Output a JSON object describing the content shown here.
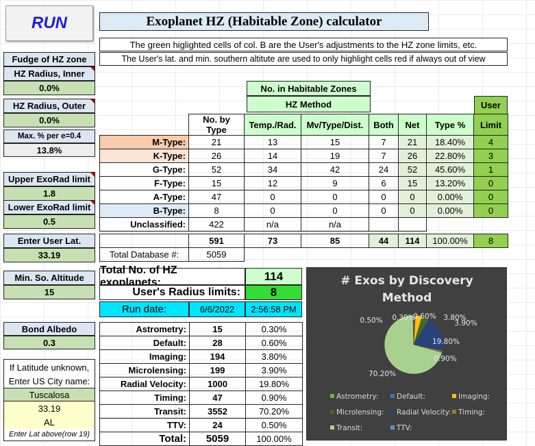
{
  "run_button": "RUN",
  "title": "Exoplanet HZ (Habitable Zone) calculator",
  "subtitle1": "The green higlighted cells of col. B are the User's adjustments to the HZ zone limits, etc.",
  "subtitle2": "The User's lat. and min. southern altitute are used to only highlight cells red if always out of view",
  "left": {
    "fudge_label": "Fudge of HZ zone",
    "inner_label": "HZ Radius, Inner",
    "inner_value": "0.0%",
    "outer_label": "HZ Radius, Outer",
    "outer_value": "0.0%",
    "maxpct_label": "Max. % per e=0.4",
    "maxpct_value": "13.8%",
    "upper_label": "Upper ExoRad limit",
    "upper_value": "1.8",
    "lower_label": "Lower ExoRad limit",
    "lower_value": "0.5",
    "lat_label": "Enter User Lat.",
    "lat_value": "33.19",
    "minalt_label": "Min. So. Altitude",
    "minalt_value": "15",
    "albedo_label": "Bond Albedo",
    "albedo_value": "0.3",
    "unknown1": "If Latitude unknown,",
    "unknown2": "Enter US City name:",
    "city": "Tuscalosa",
    "city_lat": "33.19",
    "state": "AL",
    "note": "Enter Lat above(row 19)"
  },
  "hz_table": {
    "header_top": "No. in Habitable Zones",
    "header_method": "HZ Method",
    "user_label": "User",
    "limit_label": "Limit",
    "columns": [
      "No. by Type",
      "Temp./Rad.",
      "Mv/Type/Dist.",
      "Both",
      "Net",
      "Type %"
    ],
    "rows": [
      {
        "type": "M-Type:",
        "count": "21",
        "temp": "13",
        "mv": "15",
        "both": "7",
        "net": "21",
        "pct": "18.40%",
        "limit": "4"
      },
      {
        "type": "K-Type:",
        "count": "26",
        "temp": "14",
        "mv": "19",
        "both": "7",
        "net": "26",
        "pct": "22.80%",
        "limit": "3"
      },
      {
        "type": "G-Type:",
        "count": "52",
        "temp": "34",
        "mv": "42",
        "both": "24",
        "net": "52",
        "pct": "45.60%",
        "limit": "1"
      },
      {
        "type": "F-Type:",
        "count": "15",
        "temp": "12",
        "mv": "9",
        "both": "6",
        "net": "15",
        "pct": "13.20%",
        "limit": "0"
      },
      {
        "type": "A-Type:",
        "count": "47",
        "temp": "0",
        "mv": "0",
        "both": "0",
        "net": "0",
        "pct": "0.00%",
        "limit": "0"
      },
      {
        "type": "B-Type:",
        "count": "8",
        "temp": "0",
        "mv": "0",
        "both": "0",
        "net": "0",
        "pct": "0.00%",
        "limit": "0"
      }
    ],
    "unclassified_label": "Unclassified:",
    "unclassified_count": "422",
    "unclassified_temp": "n/a",
    "unclassified_mv": "n/a",
    "totals": {
      "count": "591",
      "temp": "73",
      "mv": "85",
      "both": "44",
      "net": "114",
      "pct": "100.00%",
      "limit": "8"
    }
  },
  "database": {
    "label": "Total Database #:",
    "value": "5059"
  },
  "summary": {
    "total_label": "Total No. of HZ exoplanets:",
    "total_value": "114",
    "user_label": "User's Radius limits:",
    "user_value": "8",
    "run_label": "Run date:",
    "run_date": "6/6/2022",
    "run_time": "2:56:58 PM"
  },
  "methods": {
    "rows": [
      {
        "name": "Astrometry:",
        "count": "15",
        "pct": "0.30%"
      },
      {
        "name": "Default:",
        "count": "28",
        "pct": "0.60%"
      },
      {
        "name": "Imaging:",
        "count": "194",
        "pct": "3.80%"
      },
      {
        "name": "Microlensing:",
        "count": "199",
        "pct": "3.90%"
      },
      {
        "name": "Radial Velocity:",
        "count": "1000",
        "pct": "19.80%"
      },
      {
        "name": "Timing:",
        "count": "47",
        "pct": "0.90%"
      },
      {
        "name": "Transit:",
        "count": "3552",
        "pct": "70.20%"
      },
      {
        "name": "TTV:",
        "count": "24",
        "pct": "0.50%"
      }
    ],
    "total_label": "Total:",
    "total_count": "5059",
    "total_pct": "100.00%"
  },
  "chart_data": {
    "type": "pie",
    "title": "# Exos by Discovery Method",
    "title_line1": "# Exos by Discovery",
    "title_line2": "Method",
    "categories": [
      "Astrometry:",
      "Default:",
      "Imaging:",
      "Microlensing:",
      "Radial Velocity:",
      "Timing:",
      "Transit:",
      "TTV:"
    ],
    "values": [
      15,
      28,
      194,
      199,
      1000,
      47,
      3552,
      24
    ],
    "data_labels": [
      "0.30%",
      "0.60%",
      "3.80%",
      "3.90%",
      "19.80%",
      "0.90%",
      "70.20%",
      "0.50%"
    ],
    "colors": [
      "#70ad47",
      "#4472c4",
      "#ffc000",
      "#43682b",
      "#264478",
      "#9e7c28",
      "#a9d18e",
      "#698ed0"
    ],
    "legend_position": "bottom"
  }
}
